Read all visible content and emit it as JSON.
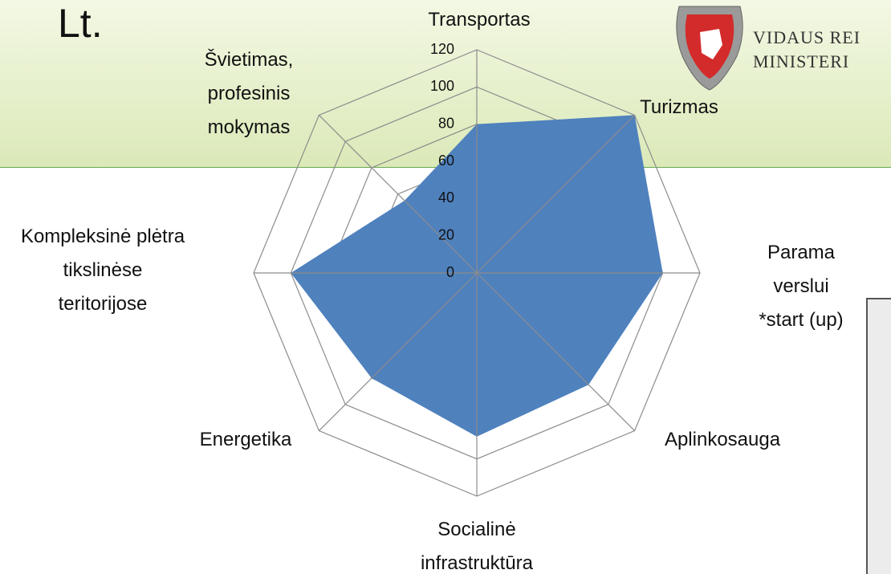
{
  "header": {
    "title": "Lt.",
    "logo_line1": "VIDAUS REI",
    "logo_line2": "MINISTERI"
  },
  "chart_data": {
    "type": "radar",
    "categories": [
      "Transportas",
      "Turizmas",
      "Parama verslui\n*start (up)",
      "Aplinkosauga",
      "Socialinė\ninfrastruktūra",
      "Energetika",
      "Kompleksinė plėtra\ntikslinėse\nteritorijose",
      "Švietimas,\nprofesinis\nmokymas"
    ],
    "values": [
      80,
      120,
      100,
      85,
      88,
      80,
      100,
      55
    ],
    "color": "#4f81bd",
    "ylim": [
      0,
      120
    ],
    "yticks": [
      0,
      20,
      40,
      60,
      80,
      100,
      120
    ],
    "grid": true
  }
}
